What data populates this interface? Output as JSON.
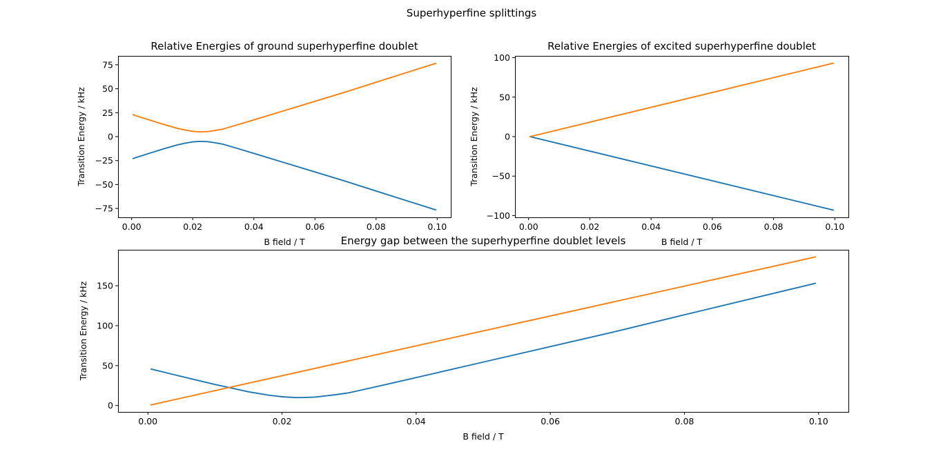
{
  "figure": {
    "suptitle": "Superhyperfine splittings"
  },
  "colors": {
    "series_1": "#1f77b4",
    "series_2": "#ff7f0e",
    "axes": "#000000",
    "background": "#ffffff"
  },
  "chart_data": [
    {
      "type": "line",
      "title": "Relative Energies of ground superhyperfine doublet",
      "xlabel": "B field / T",
      "ylabel": "Transition Energy / kHz",
      "xlim": [
        -0.00445,
        0.10445
      ],
      "ylim": [
        -84.3,
        84.3
      ],
      "xticks": [
        0.0,
        0.02,
        0.04,
        0.06,
        0.08,
        0.1
      ],
      "xtick_labels": [
        "0.00",
        "0.02",
        "0.04",
        "0.06",
        "0.08",
        "0.10"
      ],
      "yticks": [
        -75,
        -50,
        -25,
        0,
        25,
        50,
        75
      ],
      "ytick_labels": [
        "−75",
        "−50",
        "−25",
        "0",
        "25",
        "50",
        "75"
      ],
      "grid": false,
      "legend": "none",
      "series": [
        {
          "color": "#1f77b4",
          "x": [
            0.0005,
            0.005,
            0.01,
            0.015,
            0.018,
            0.02,
            0.022,
            0.023,
            0.025,
            0.028,
            0.03,
            0.035,
            0.04,
            0.05,
            0.06,
            0.07,
            0.08,
            0.09,
            0.0995
          ],
          "y": [
            -22.8,
            -18.2,
            -13.2,
            -8.6,
            -6.5,
            -5.5,
            -5.0,
            -5.0,
            -5.3,
            -6.8,
            -8.0,
            -12.7,
            -17.5,
            -27.2,
            -36.9,
            -46.6,
            -56.8,
            -66.9,
            -76.5
          ]
        },
        {
          "color": "#ff7f0e",
          "x": [
            0.0005,
            0.005,
            0.01,
            0.015,
            0.018,
            0.02,
            0.022,
            0.023,
            0.025,
            0.028,
            0.03,
            0.035,
            0.04,
            0.05,
            0.06,
            0.07,
            0.08,
            0.09,
            0.0995
          ],
          "y": [
            22.8,
            18.2,
            13.2,
            8.6,
            6.5,
            5.5,
            5.0,
            5.0,
            5.3,
            6.8,
            8.0,
            12.7,
            17.5,
            27.2,
            36.9,
            46.6,
            56.8,
            66.9,
            76.5
          ]
        }
      ]
    },
    {
      "type": "line",
      "title": "Relative Energies of excited superhyperfine doublet",
      "xlabel": "B field / T",
      "ylabel": "Transition Energy / kHz",
      "xlim": [
        -0.00445,
        0.10445
      ],
      "ylim": [
        -102.2,
        102.2
      ],
      "xticks": [
        0.0,
        0.02,
        0.04,
        0.06,
        0.08,
        0.1
      ],
      "xtick_labels": [
        "0.00",
        "0.02",
        "0.04",
        "0.06",
        "0.08",
        "0.10"
      ],
      "yticks": [
        -100,
        -50,
        0,
        50,
        100
      ],
      "ytick_labels": [
        "−100",
        "−50",
        "0",
        "50",
        "100"
      ],
      "grid": false,
      "legend": "none",
      "series": [
        {
          "color": "#1f77b4",
          "x": [
            0.0005,
            0.0995
          ],
          "y": [
            0.0,
            -93.0
          ]
        },
        {
          "color": "#ff7f0e",
          "x": [
            0.0005,
            0.0995
          ],
          "y": [
            0.0,
            93.0
          ]
        }
      ]
    },
    {
      "type": "line",
      "title": "Energy gap between the superhyperfine doublet levels",
      "xlabel": "B field / T",
      "ylabel": "Transition Energy / kHz",
      "xlim": [
        -0.00445,
        0.10445
      ],
      "ylim": [
        -8.0,
        195.0
      ],
      "xticks": [
        0.0,
        0.02,
        0.04,
        0.06,
        0.08,
        0.1
      ],
      "xtick_labels": [
        "0.00",
        "0.02",
        "0.04",
        "0.06",
        "0.08",
        "0.10"
      ],
      "yticks": [
        0,
        50,
        100,
        150
      ],
      "ytick_labels": [
        "0",
        "50",
        "100",
        "150"
      ],
      "grid": false,
      "legend": "none",
      "series": [
        {
          "color": "#1f77b4",
          "x": [
            0.0005,
            0.005,
            0.01,
            0.015,
            0.018,
            0.02,
            0.022,
            0.023,
            0.025,
            0.028,
            0.03,
            0.035,
            0.04,
            0.05,
            0.06,
            0.07,
            0.08,
            0.09,
            0.0995
          ],
          "y": [
            45.6,
            36.4,
            26.4,
            17.2,
            13.0,
            11.0,
            10.0,
            10.0,
            10.6,
            13.6,
            16.0,
            25.4,
            35.0,
            54.4,
            73.8,
            93.2,
            113.6,
            133.8,
            153.0
          ]
        },
        {
          "color": "#ff7f0e",
          "x": [
            0.0005,
            0.0995
          ],
          "y": [
            0.9,
            186.0
          ]
        }
      ]
    }
  ]
}
